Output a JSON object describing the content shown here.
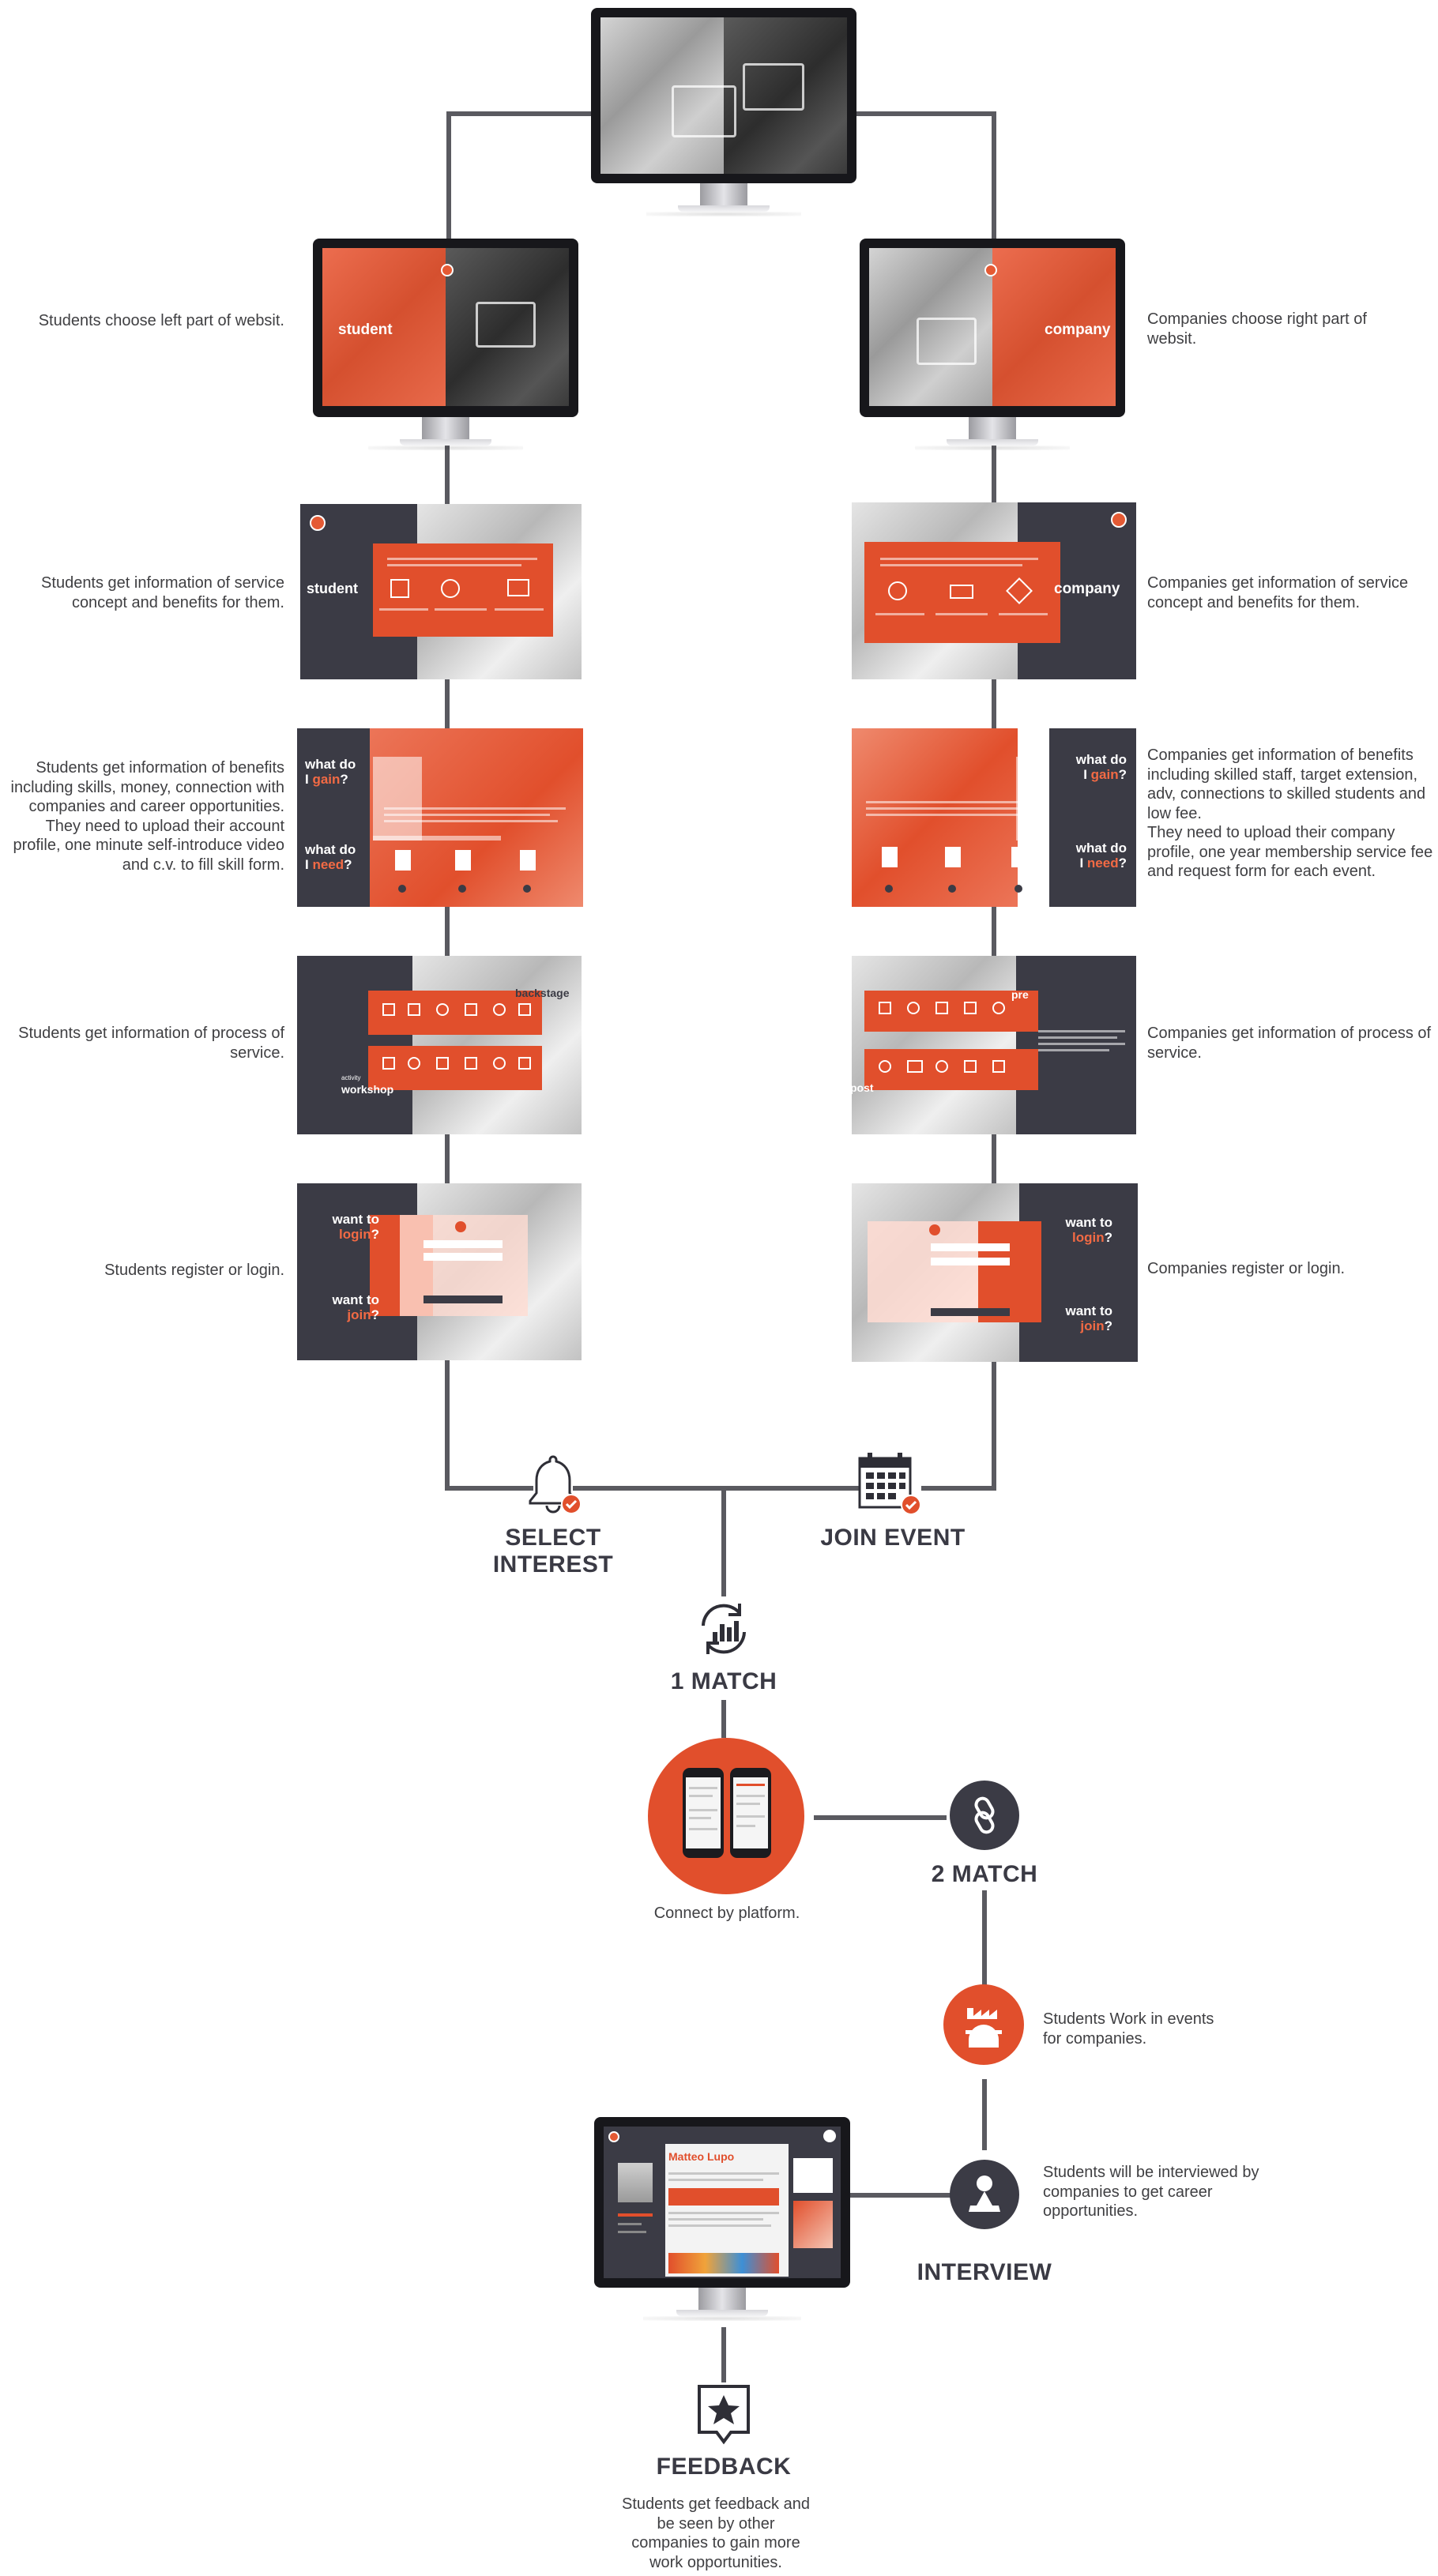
{
  "accent_color": "#e14f2c",
  "dark_color": "#3b3b45",
  "line_color": "#5a5a60",
  "screens": {
    "student_home": "student",
    "company_home": "company",
    "student_concept": "student",
    "company_concept": "company",
    "gain_prefix": "what do",
    "gain_i": "I ",
    "gain_word": "gain",
    "need_word": "need",
    "q": "?",
    "backstage": "backstage",
    "workshop": "workshop",
    "activity": "activity",
    "pre": "pre",
    "post": "post",
    "want_to": "want to",
    "login": "login",
    "join": "join"
  },
  "left_descriptions": [
    "Students choose left part of websit.",
    "Students get information of service concept and benefits for them.",
    "Students get information of benefits including skills, money, connection with companies and career opportunities. They need to upload their  account profile, one minute self-introduce video and c.v. to fill skill form.",
    "Students get information of process of service.",
    "Students register or login."
  ],
  "right_descriptions": [
    "Companies choose right part of websit.",
    "Companies get information of service concept and benefits for them.",
    "Companies get information of benefits including skilled staff, target extension, adv, connections to skilled students and low fee.\nThey need to upload their company profile, one year membership service fee and request form for each event.",
    "Companies get information of process of service.",
    "Companies register or login."
  ],
  "flow": {
    "select_interest": "SELECT INTEREST",
    "join_event": "JOIN EVENT",
    "match1": "1 MATCH",
    "connect": "Connect by platform.",
    "match2": "2 MATCH",
    "work_events": "Students Work in events for companies.",
    "interviewed": "Students will be interviewed by companies to get career opportunities.",
    "interview": "INTERVIEW",
    "feedback": "FEEDBACK",
    "feedback_desc": "Students get feedback and be seen by other companies to gain more work opportunities.",
    "profile_name": "Matteo Lupo"
  },
  "icons": {
    "select_interest": "bell-check-icon",
    "join_event": "calendar-check-icon",
    "match1": "chart-refresh-icon",
    "match2": "link-icon",
    "work": "factory-worker-icon",
    "interview": "person-icon",
    "feedback": "star-speech-bubble-icon"
  }
}
